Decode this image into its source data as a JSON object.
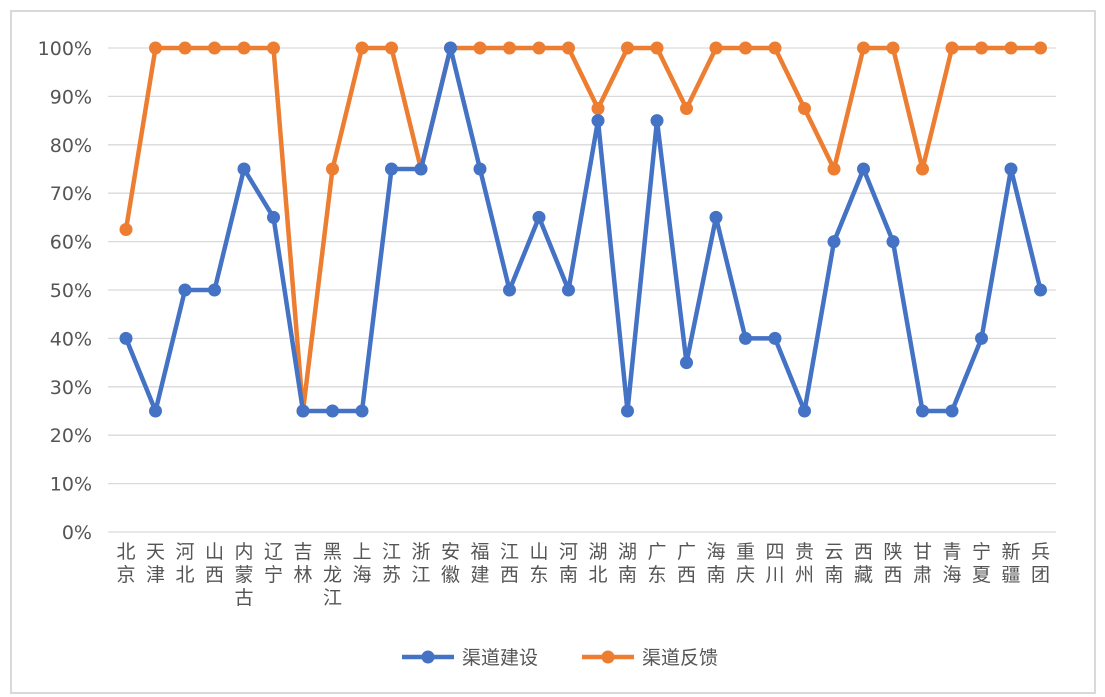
{
  "chart_data": {
    "type": "line",
    "categories": [
      "北京",
      "天津",
      "河北",
      "山西",
      "内蒙古",
      "辽宁",
      "吉林",
      "黑龙江",
      "上海",
      "江苏",
      "浙江",
      "安徽",
      "福建",
      "江西",
      "山东",
      "河南",
      "湖北",
      "湖南",
      "广东",
      "广西",
      "海南",
      "重庆",
      "四川",
      "贵州",
      "云南",
      "西藏",
      "陕西",
      "甘肃",
      "青海",
      "宁夏",
      "新疆",
      "兵团"
    ],
    "series": [
      {
        "name": "渠道建设",
        "color": "#4472C4",
        "values": [
          40,
          25,
          50,
          50,
          75,
          65,
          25,
          25,
          25,
          75,
          75,
          100,
          75,
          50,
          65,
          50,
          85,
          25,
          85,
          35,
          65,
          40,
          40,
          25,
          60,
          75,
          60,
          25,
          25,
          40,
          75,
          50
        ]
      },
      {
        "name": "渠道反馈",
        "color": "#ED7D31",
        "values": [
          62.5,
          100,
          100,
          100,
          100,
          100,
          25,
          75,
          100,
          100,
          75,
          100,
          100,
          100,
          100,
          100,
          87.5,
          100,
          100,
          87.5,
          100,
          100,
          100,
          87.5,
          75,
          100,
          100,
          75,
          100,
          100,
          100,
          100
        ]
      }
    ],
    "yticks": [
      "0%",
      "10%",
      "20%",
      "30%",
      "40%",
      "50%",
      "60%",
      "70%",
      "80%",
      "90%",
      "100%"
    ],
    "ylim": [
      0,
      100
    ],
    "grid": true,
    "legend": "bottom"
  }
}
